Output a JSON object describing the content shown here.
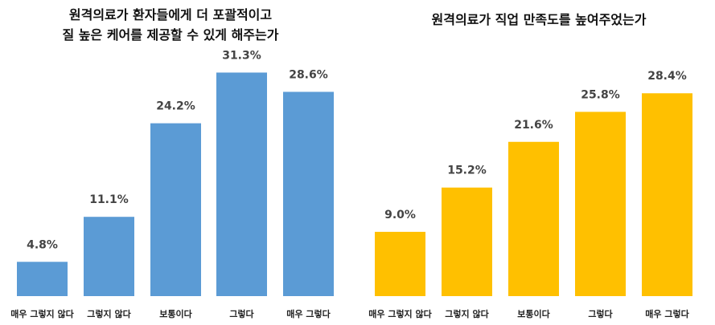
{
  "chart_data": [
    {
      "type": "bar",
      "title_lines": [
        "원격의료가 환자들에게 더 포괄적이고",
        "질 높은 케어를 제공할 수 있게 해주는가"
      ],
      "categories": [
        "매우 그렇지 않다",
        "그렇지 않다",
        "보통이다",
        "그렇다",
        "매우 그렇다"
      ],
      "values": [
        4.8,
        11.1,
        24.2,
        31.3,
        28.6
      ],
      "value_labels": [
        "4.8%",
        "11.1%",
        "24.2%",
        "31.3%",
        "28.6%"
      ],
      "ylim": [
        0,
        32
      ],
      "color": "#5B9BD5",
      "grid": false
    },
    {
      "type": "bar",
      "title_lines": [
        "원격의료가 직업 만족도를 높여주었는가"
      ],
      "categories": [
        "매우 그렇지 않다",
        "그렇지 않다",
        "보통이다",
        "그렇다",
        "매우 그렇다"
      ],
      "values": [
        9.0,
        15.2,
        21.6,
        25.8,
        28.4
      ],
      "value_labels": [
        "9.0%",
        "15.2%",
        "21.6%",
        "25.8%",
        "28.4%"
      ],
      "ylim": [
        0,
        32
      ],
      "color": "#FFC000",
      "grid": false
    }
  ]
}
